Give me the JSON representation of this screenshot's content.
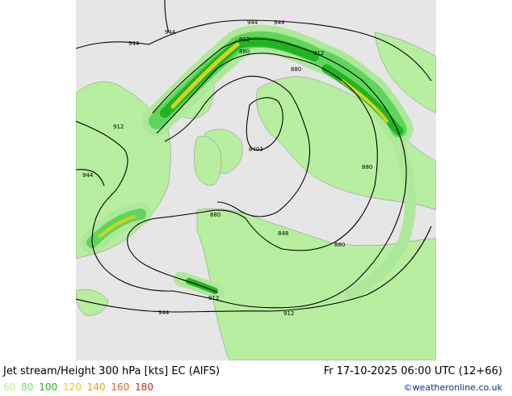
{
  "title": "Jet stream/Height 300 hPa [kts] EC (AIFS)",
  "valid_time": "Fr 17-10-2025 06:00 UTC (12+66)",
  "legend": [
    {
      "value": "60",
      "color": "#c7ec9a"
    },
    {
      "value": "80",
      "color": "#7ad96b"
    },
    {
      "value": "100",
      "color": "#1fb51f"
    },
    {
      "value": "120",
      "color": "#d6d41c"
    },
    {
      "value": "140",
      "color": "#e0a317"
    },
    {
      "value": "160",
      "color": "#e0661d"
    },
    {
      "value": "180",
      "color": "#d12a1b"
    }
  ],
  "copyright": "©weatheronline.co.uk",
  "contour_labels": {
    "c944": "944",
    "c912": "912",
    "c880": "880",
    "c848": "848",
    "c816": "816",
    "c8403": "8403"
  },
  "colors": {
    "ocean": "#e6e6e6",
    "land": "#b7eea0",
    "jet60": "#aee89a",
    "jet80": "#5fd65b",
    "jet100": "#21b421",
    "jet120": "#d4d41c"
  }
}
